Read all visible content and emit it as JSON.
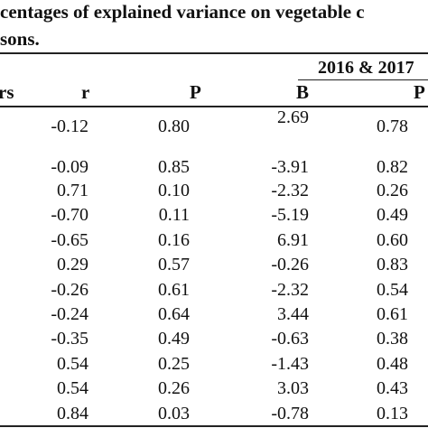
{
  "caption": {
    "line1": "centages of explained variance on vegetable c",
    "line2": "sons."
  },
  "table": {
    "group_header": "2016 & 2017",
    "columns": [
      "rs",
      "r",
      "P",
      "B",
      "P"
    ],
    "rows": [
      {
        "r": "-0.12",
        "p": "0.80",
        "b": "2.69",
        "p2": "0.78"
      },
      {
        "r": "-0.09",
        "p": "0.85",
        "b": "-3.91",
        "p2": "0.82"
      },
      {
        "r": "0.71",
        "p": "0.10",
        "b": "-2.32",
        "p2": "0.26"
      },
      {
        "r": "-0.70",
        "p": "0.11",
        "b": "-5.19",
        "p2": "0.49"
      },
      {
        "r": "-0.65",
        "p": "0.16",
        "b": "6.91",
        "p2": "0.60"
      },
      {
        "r": "0.29",
        "p": "0.57",
        "b": "-0.26",
        "p2": "0.83"
      },
      {
        "r": "-0.26",
        "p": "0.61",
        "b": "-2.32",
        "p2": "0.54"
      },
      {
        "r": "-0.24",
        "p": "0.64",
        "b": "3.44",
        "p2": "0.61"
      },
      {
        "r": "-0.35",
        "p": "0.49",
        "b": "-0.63",
        "p2": "0.38"
      },
      {
        "r": "0.54",
        "p": "0.25",
        "b": "-1.43",
        "p2": "0.48"
      },
      {
        "r": "0.54",
        "p": "0.26",
        "b": "3.03",
        "p2": "0.43"
      },
      {
        "r": "0.84",
        "p": "0.03",
        "b": "-0.78",
        "p2": "0.13"
      }
    ]
  }
}
